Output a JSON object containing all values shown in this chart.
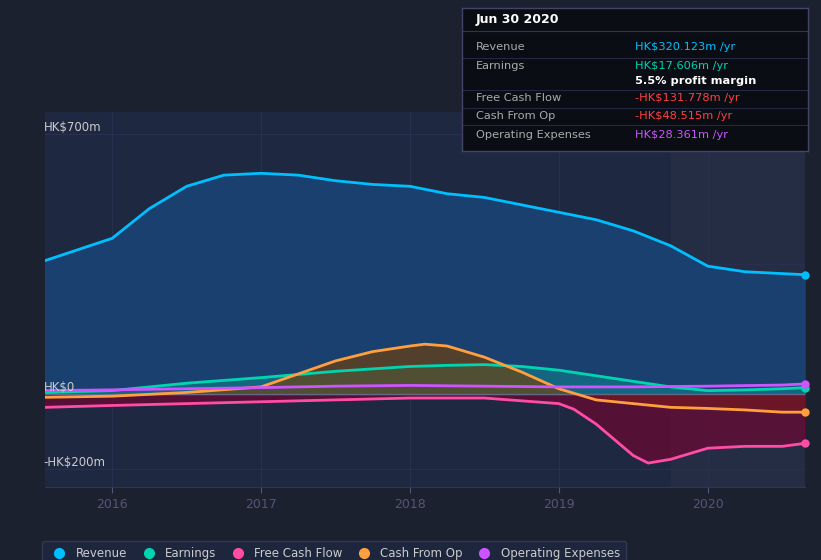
{
  "bg_color": "#1c2130",
  "plot_bg_color": "#1e2840",
  "x_min": 2015.55,
  "x_max": 2020.65,
  "ylim": [
    -250,
    760
  ],
  "x_ticks": [
    2016,
    2017,
    2018,
    2019,
    2020
  ],
  "highlight_start": 2019.75,
  "highlight_color": "#252d45",
  "gridline_color": "#2a3050",
  "zero_line_color": "#666688",
  "hk700_label": "HK$700m",
  "hk0_label": "HK$0",
  "hkneg200_label": "-HK$200m",
  "hk700_y": 700,
  "hk0_y": 0,
  "hkneg200_y": -200,
  "revenue": {
    "x": [
      2015.55,
      2016.0,
      2016.25,
      2016.5,
      2016.75,
      2017.0,
      2017.25,
      2017.5,
      2017.75,
      2018.0,
      2018.25,
      2018.5,
      2018.75,
      2019.0,
      2019.25,
      2019.5,
      2019.75,
      2020.0,
      2020.25,
      2020.5,
      2020.65
    ],
    "y": [
      360,
      420,
      500,
      560,
      590,
      595,
      590,
      575,
      565,
      560,
      540,
      530,
      510,
      490,
      470,
      440,
      400,
      345,
      330,
      325,
      322
    ],
    "line_color": "#00bfff",
    "fill_color": "#1a4070",
    "line_width": 2.0
  },
  "earnings": {
    "x": [
      2015.55,
      2016.0,
      2016.5,
      2017.0,
      2017.5,
      2018.0,
      2018.25,
      2018.5,
      2018.75,
      2019.0,
      2019.25,
      2019.5,
      2019.75,
      2020.0,
      2020.25,
      2020.5,
      2020.65
    ],
    "y": [
      5,
      10,
      30,
      45,
      62,
      75,
      78,
      80,
      75,
      65,
      50,
      35,
      20,
      10,
      12,
      15,
      18
    ],
    "line_color": "#00d4b0",
    "fill_color": "#00d4b0",
    "fill_alpha": 0.25,
    "line_width": 2.0
  },
  "cash_from_op": {
    "x": [
      2015.55,
      2016.0,
      2016.5,
      2017.0,
      2017.25,
      2017.5,
      2017.75,
      2018.0,
      2018.1,
      2018.25,
      2018.5,
      2018.75,
      2019.0,
      2019.25,
      2019.5,
      2019.75,
      2020.0,
      2020.25,
      2020.5,
      2020.65
    ],
    "y": [
      -8,
      -5,
      5,
      20,
      55,
      90,
      115,
      130,
      135,
      130,
      100,
      60,
      15,
      -15,
      -25,
      -35,
      -38,
      -42,
      -48,
      -48
    ],
    "line_color": "#ffa040",
    "fill_color": "#7a4000",
    "fill_alpha": 0.6,
    "line_width": 2.0
  },
  "free_cash_flow": {
    "x": [
      2015.55,
      2016.0,
      2016.5,
      2017.0,
      2017.5,
      2018.0,
      2018.5,
      2019.0,
      2019.1,
      2019.25,
      2019.5,
      2019.6,
      2019.75,
      2020.0,
      2020.25,
      2020.5,
      2020.65
    ],
    "y": [
      -35,
      -30,
      -25,
      -20,
      -15,
      -10,
      -10,
      -25,
      -40,
      -80,
      -165,
      -185,
      -175,
      -145,
      -140,
      -140,
      -132
    ],
    "line_color": "#ff4da6",
    "fill_color": "#7a0030",
    "fill_alpha": 0.6,
    "line_width": 2.0
  },
  "operating_expenses": {
    "x": [
      2015.55,
      2016.0,
      2016.5,
      2017.0,
      2017.5,
      2018.0,
      2018.5,
      2019.0,
      2019.5,
      2020.0,
      2020.5,
      2020.65
    ],
    "y": [
      10,
      12,
      15,
      18,
      22,
      24,
      22,
      20,
      20,
      22,
      25,
      28
    ],
    "line_color": "#cc55ff",
    "line_width": 2.0
  },
  "end_dots": {
    "revenue_y": 322,
    "earnings_y": 18,
    "cash_from_op_y": -48,
    "free_cash_flow_y": -132,
    "operating_expenses_y": 28,
    "x": 2020.65
  },
  "info_box": {
    "date": "Jun 30 2020",
    "rows": [
      {
        "label": "Revenue",
        "value": "HK$320.123m /yr",
        "label_color": "#aaaaaa",
        "value_color": "#00bfff"
      },
      {
        "label": "Earnings",
        "value": "HK$17.606m /yr",
        "label_color": "#aaaaaa",
        "value_color": "#00d4b0"
      },
      {
        "label": "",
        "value": "5.5% profit margin",
        "label_color": "#aaaaaa",
        "value_color": "#ffffff",
        "bold": true
      },
      {
        "label": "Free Cash Flow",
        "value": "-HK$131.778m /yr",
        "label_color": "#aaaaaa",
        "value_color": "#ff4040"
      },
      {
        "label": "Cash From Op",
        "value": "-HK$48.515m /yr",
        "label_color": "#aaaaaa",
        "value_color": "#ff4040"
      },
      {
        "label": "Operating Expenses",
        "value": "HK$28.361m /yr",
        "label_color": "#aaaaaa",
        "value_color": "#cc55ff"
      }
    ],
    "bg_color": "#0a0d14",
    "border_color": "#444466",
    "date_color": "#ffffff",
    "sep_color": "#333355"
  },
  "legend": [
    {
      "label": "Revenue",
      "color": "#00bfff"
    },
    {
      "label": "Earnings",
      "color": "#00d4b0"
    },
    {
      "label": "Free Cash Flow",
      "color": "#ff4da6"
    },
    {
      "label": "Cash From Op",
      "color": "#ffa040"
    },
    {
      "label": "Operating Expenses",
      "color": "#cc55ff"
    }
  ]
}
